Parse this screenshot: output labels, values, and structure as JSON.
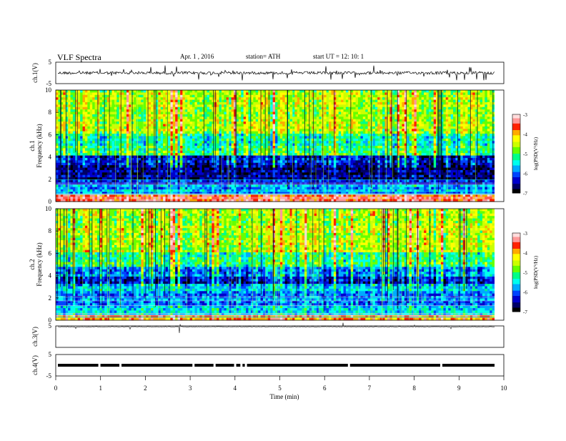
{
  "header": {
    "title": "VLF  Spectra",
    "date": "Apr. 1  , 2016",
    "station": "station= ATH",
    "start": "start  UT  =    12: 10: 1"
  },
  "colors": {
    "cmap": [
      "#000000",
      "#000066",
      "#0000cc",
      "#0044ff",
      "#00aaff",
      "#00ffee",
      "#00ff88",
      "#66ff00",
      "#ccff00",
      "#ffff00",
      "#ffaa00",
      "#ff2200",
      "#ff9999",
      "#ffdddd"
    ]
  },
  "chart_data": [
    {
      "type": "line",
      "name": "ch1-waveform",
      "ylabel": "ch.1(V)",
      "ylim": [
        -5,
        5
      ],
      "yticks": [
        "5",
        "-5"
      ],
      "xlim": [
        0,
        10
      ],
      "baseline_v": 0.0
    },
    {
      "type": "heatmap",
      "name": "ch1-spectrogram",
      "ylabel_channel": "ch.1",
      "ylabel": "Frequency  (kHz)",
      "ylim": [
        0,
        10
      ],
      "yticks": [
        "0",
        "2",
        "4",
        "6",
        "8",
        "10"
      ],
      "xlim": [
        0,
        10
      ],
      "colorbar": {
        "label": "log(PSD(V²/Hz)",
        "ticks": [
          "-3",
          "-4",
          "-5",
          "-6",
          "-7"
        ],
        "range": [
          -7,
          -3
        ]
      }
    },
    {
      "type": "heatmap",
      "name": "ch2-spectrogram",
      "ylabel_channel": "ch.2",
      "ylabel": "Frequency  (kHz)",
      "ylim": [
        0,
        10
      ],
      "yticks": [
        "0",
        "2",
        "4",
        "6",
        "8",
        "10"
      ],
      "xlim": [
        0,
        10
      ],
      "colorbar": {
        "label": "log(PSD(V²/Hz)",
        "ticks": [
          "-3",
          "-4",
          "-5",
          "-6",
          "-7"
        ],
        "range": [
          -7,
          -3
        ]
      }
    },
    {
      "type": "line",
      "name": "ch3-waveform",
      "ylabel": "ch.3(V)",
      "ylim": [
        -5,
        5
      ],
      "yticks": [
        "5"
      ],
      "xlim": [
        0,
        10
      ],
      "baseline_v": 4.6
    },
    {
      "type": "line",
      "name": "ch4-waveform",
      "ylabel": "ch.4(V)",
      "ylim": [
        -5,
        5
      ],
      "yticks": [
        "5",
        "-5"
      ],
      "xlim": [
        0,
        10
      ],
      "baseline_v": 0.0
    }
  ],
  "xaxis": {
    "label": "Time  (min)",
    "ticks": [
      "0",
      "1",
      "2",
      "3",
      "4",
      "5",
      "6",
      "7",
      "8",
      "9",
      "10"
    ]
  }
}
